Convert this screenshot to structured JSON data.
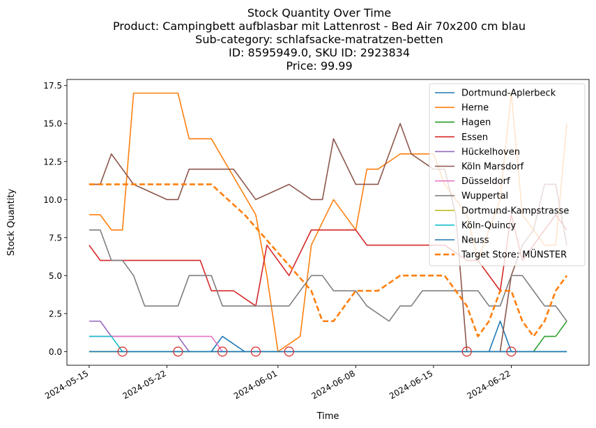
{
  "chart_data": {
    "type": "line",
    "title_lines": [
      "Stock Quantity Over Time",
      "Product: Campingbett aufblasbar mit Lattenrost - Bed Air 70x200 cm blau",
      "Sub-category: schlafsacke-matratzen-betten",
      "ID: 8595949.0, SKU ID: 2923834",
      "Price: 99.99"
    ],
    "xlabel": "Time",
    "ylabel": "Stock Quantity",
    "x_start": "2024-05-15",
    "x_end": "2024-06-27",
    "xlim": [
      "2024-05-13",
      "2024-06-29"
    ],
    "ylim": [
      -0.9,
      17.9
    ],
    "x_ticks": [
      "2024-05-15",
      "2024-05-22",
      "2024-06-01",
      "2024-06-08",
      "2024-06-15",
      "2024-06-22"
    ],
    "y_ticks": [
      "0.0",
      "2.5",
      "5.0",
      "7.5",
      "10.0",
      "12.5",
      "15.0",
      "17.5"
    ],
    "y_tick_values": [
      0,
      2.5,
      5,
      7.5,
      10,
      12.5,
      15,
      17.5
    ],
    "legend_position": "upper right",
    "series": [
      {
        "name": "Dortmund-Aplerbeck",
        "color": "#1f77b4",
        "dashed": false,
        "points": [
          [
            "2024-05-15",
            0
          ],
          [
            "2024-05-26",
            0
          ],
          [
            "2024-05-27",
            1
          ],
          [
            "2024-05-29",
            0
          ],
          [
            "2024-06-20",
            0
          ],
          [
            "2024-06-21",
            2
          ],
          [
            "2024-06-22",
            0
          ],
          [
            "2024-06-27",
            0
          ]
        ]
      },
      {
        "name": "Herne",
        "color": "#ff7f0e",
        "dashed": false,
        "points": [
          [
            "2024-05-15",
            9
          ],
          [
            "2024-05-16",
            9
          ],
          [
            "2024-05-17",
            8
          ],
          [
            "2024-05-18",
            8
          ],
          [
            "2024-05-19",
            17
          ],
          [
            "2024-05-23",
            17
          ],
          [
            "2024-05-24",
            14
          ],
          [
            "2024-05-26",
            14
          ],
          [
            "2024-05-30",
            9
          ],
          [
            "2024-05-31",
            5
          ],
          [
            "2024-06-01",
            0
          ],
          [
            "2024-06-03",
            1
          ],
          [
            "2024-06-04",
            7
          ],
          [
            "2024-06-06",
            10
          ],
          [
            "2024-06-08",
            8
          ],
          [
            "2024-06-09",
            12
          ],
          [
            "2024-06-10",
            12
          ],
          [
            "2024-06-12",
            13
          ],
          [
            "2024-06-15",
            13
          ],
          [
            "2024-06-16",
            11
          ],
          [
            "2024-06-18",
            9
          ],
          [
            "2024-06-19",
            6
          ],
          [
            "2024-06-21",
            10
          ],
          [
            "2024-06-22",
            17
          ],
          [
            "2024-06-23",
            9
          ],
          [
            "2024-06-25",
            7
          ],
          [
            "2024-06-26",
            7
          ],
          [
            "2024-06-27",
            15
          ]
        ]
      },
      {
        "name": "Hagen",
        "color": "#2ca02c",
        "dashed": false,
        "points": [
          [
            "2024-05-15",
            0
          ],
          [
            "2024-06-24",
            0
          ],
          [
            "2024-06-25",
            1
          ],
          [
            "2024-06-26",
            1
          ],
          [
            "2024-06-27",
            2
          ]
        ]
      },
      {
        "name": "Essen",
        "color": "#d62728",
        "dashed": false,
        "points": [
          [
            "2024-05-15",
            7
          ],
          [
            "2024-05-16",
            6
          ],
          [
            "2024-05-25",
            6
          ],
          [
            "2024-05-26",
            4
          ],
          [
            "2024-05-28",
            4
          ],
          [
            "2024-05-30",
            3
          ],
          [
            "2024-05-31",
            7
          ],
          [
            "2024-06-02",
            5
          ],
          [
            "2024-06-04",
            8
          ],
          [
            "2024-06-08",
            8
          ],
          [
            "2024-06-09",
            7
          ],
          [
            "2024-06-16",
            7
          ],
          [
            "2024-06-18",
            6
          ],
          [
            "2024-06-19",
            6
          ],
          [
            "2024-06-21",
            4
          ],
          [
            "2024-06-22",
            9
          ],
          [
            "2024-06-23",
            6
          ],
          [
            "2024-06-26",
            9
          ],
          [
            "2024-06-27",
            8
          ]
        ]
      },
      {
        "name": "Hückelhoven",
        "color": "#9467bd",
        "dashed": false,
        "points": [
          [
            "2024-05-15",
            2
          ],
          [
            "2024-05-16",
            2
          ],
          [
            "2024-05-17",
            1
          ],
          [
            "2024-05-23",
            1
          ],
          [
            "2024-05-24",
            0
          ],
          [
            "2024-06-27",
            0
          ]
        ]
      },
      {
        "name": "Köln Marsdorf",
        "color": "#8c564b",
        "dashed": false,
        "points": [
          [
            "2024-05-15",
            11
          ],
          [
            "2024-05-16",
            11
          ],
          [
            "2024-05-17",
            13
          ],
          [
            "2024-05-19",
            11
          ],
          [
            "2024-05-22",
            10
          ],
          [
            "2024-05-23",
            10
          ],
          [
            "2024-05-24",
            12
          ],
          [
            "2024-05-28",
            12
          ],
          [
            "2024-05-30",
            10
          ],
          [
            "2024-06-02",
            11
          ],
          [
            "2024-06-04",
            10
          ],
          [
            "2024-06-05",
            10
          ],
          [
            "2024-06-06",
            14
          ],
          [
            "2024-06-08",
            11
          ],
          [
            "2024-06-10",
            11
          ],
          [
            "2024-06-12",
            15
          ],
          [
            "2024-06-13",
            13
          ],
          [
            "2024-06-15",
            12
          ],
          [
            "2024-06-16",
            12
          ],
          [
            "2024-06-17",
            9
          ],
          [
            "2024-06-18",
            0
          ],
          [
            "2024-06-21",
            0
          ],
          [
            "2024-06-22",
            5
          ],
          [
            "2024-06-23",
            7
          ],
          [
            "2024-06-24",
            8
          ],
          [
            "2024-06-25",
            11
          ],
          [
            "2024-06-26",
            11
          ],
          [
            "2024-06-27",
            7
          ]
        ]
      },
      {
        "name": "Düsseldorf",
        "color": "#e377c2",
        "dashed": false,
        "points": [
          [
            "2024-05-15",
            1
          ],
          [
            "2024-05-26",
            1
          ],
          [
            "2024-05-27",
            0
          ],
          [
            "2024-06-27",
            0
          ]
        ]
      },
      {
        "name": "Wuppertal",
        "color": "#7f7f7f",
        "dashed": false,
        "points": [
          [
            "2024-05-15",
            8
          ],
          [
            "2024-05-16",
            8
          ],
          [
            "2024-05-17",
            6
          ],
          [
            "2024-05-18",
            6
          ],
          [
            "2024-05-19",
            5
          ],
          [
            "2024-05-20",
            3
          ],
          [
            "2024-05-23",
            3
          ],
          [
            "2024-05-24",
            5
          ],
          [
            "2024-05-26",
            5
          ],
          [
            "2024-05-27",
            3
          ],
          [
            "2024-06-02",
            3
          ],
          [
            "2024-06-04",
            5
          ],
          [
            "2024-06-05",
            5
          ],
          [
            "2024-06-06",
            4
          ],
          [
            "2024-06-08",
            4
          ],
          [
            "2024-06-09",
            3
          ],
          [
            "2024-06-11",
            2
          ],
          [
            "2024-06-12",
            3
          ],
          [
            "2024-06-13",
            3
          ],
          [
            "2024-06-14",
            4
          ],
          [
            "2024-06-19",
            4
          ],
          [
            "2024-06-20",
            3
          ],
          [
            "2024-06-21",
            3
          ],
          [
            "2024-06-22",
            5
          ],
          [
            "2024-06-23",
            5
          ],
          [
            "2024-06-25",
            3
          ],
          [
            "2024-06-26",
            3
          ],
          [
            "2024-06-27",
            2
          ]
        ]
      },
      {
        "name": "Dortmund-Kampstrasse",
        "color": "#bcbd22",
        "dashed": false,
        "points": [
          [
            "2024-05-15",
            0
          ],
          [
            "2024-06-27",
            0
          ]
        ]
      },
      {
        "name": "Köln-Quincy",
        "color": "#17becf",
        "dashed": false,
        "points": [
          [
            "2024-05-15",
            1
          ],
          [
            "2024-05-17",
            1
          ],
          [
            "2024-05-18",
            0
          ],
          [
            "2024-06-27",
            0
          ]
        ]
      },
      {
        "name": "Neuss",
        "color": "#1f77b4",
        "dashed": false,
        "points": [
          [
            "2024-05-15",
            0
          ],
          [
            "2024-06-27",
            0
          ]
        ]
      },
      {
        "name": "Target Store: MÜNSTER",
        "color": "#ff7f0e",
        "dashed": true,
        "points": [
          [
            "2024-05-15",
            11
          ],
          [
            "2024-05-26",
            11
          ],
          [
            "2024-05-29",
            9
          ],
          [
            "2024-06-04",
            4
          ],
          [
            "2024-06-05",
            2
          ],
          [
            "2024-06-06",
            2
          ],
          [
            "2024-06-08",
            4
          ],
          [
            "2024-06-10",
            4
          ],
          [
            "2024-06-12",
            5
          ],
          [
            "2024-06-16",
            5
          ],
          [
            "2024-06-18",
            3
          ],
          [
            "2024-06-19",
            1
          ],
          [
            "2024-06-20",
            2
          ],
          [
            "2024-06-21",
            4
          ],
          [
            "2024-06-22",
            4
          ],
          [
            "2024-06-23",
            2
          ],
          [
            "2024-06-24",
            1
          ],
          [
            "2024-06-25",
            2
          ],
          [
            "2024-06-26",
            4
          ],
          [
            "2024-06-27",
            5
          ]
        ]
      }
    ],
    "markers": {
      "color": "#d62728",
      "style": "open-circle",
      "points": [
        [
          "2024-05-18",
          0
        ],
        [
          "2024-05-23",
          0
        ],
        [
          "2024-05-27",
          0
        ],
        [
          "2024-05-30",
          0
        ],
        [
          "2024-06-02",
          0
        ],
        [
          "2024-06-18",
          0
        ],
        [
          "2024-06-22",
          0
        ]
      ]
    }
  }
}
